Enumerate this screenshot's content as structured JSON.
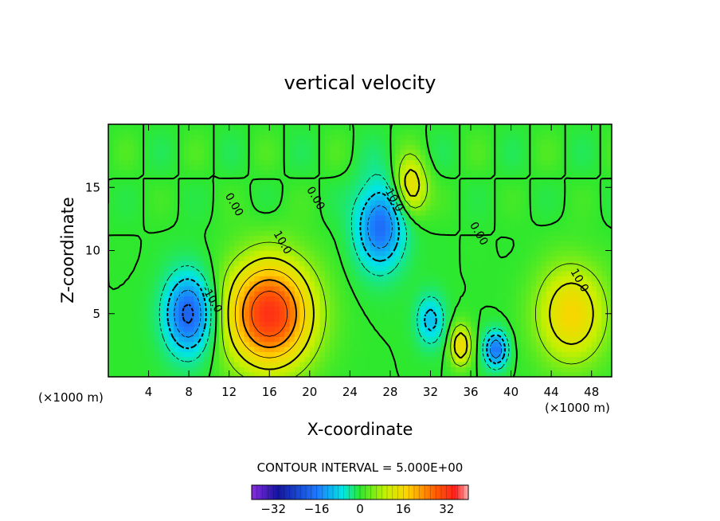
{
  "chart_data": {
    "type": "contour",
    "title": "vertical velocity",
    "xlabel": "X-coordinate",
    "ylabel": "Z-coordinate",
    "xunit": "(×1000 m)",
    "zunit": "(×1000 m)",
    "xlim": [
      0,
      50
    ],
    "ylim": [
      0,
      20
    ],
    "xticks": [
      4,
      8,
      12,
      16,
      20,
      24,
      28,
      32,
      36,
      40,
      44,
      48
    ],
    "xtick_labels": [
      "4",
      "8",
      "12",
      "16",
      "20",
      "24",
      "28",
      "32",
      "36",
      "40",
      "44",
      "48"
    ],
    "yticks": [
      5,
      10,
      15
    ],
    "ytick_labels": [
      "5",
      "10",
      "15"
    ],
    "contour_interval_label": "CONTOUR INTERVAL = 5.000E+00",
    "colorbar": {
      "ticks": [
        -32,
        -16,
        0,
        16,
        32
      ],
      "tick_labels": [
        "−32",
        "−16",
        "0",
        "16",
        "32"
      ],
      "range": [
        -40,
        40
      ]
    },
    "contour_labels": [
      {
        "text": "10.0",
        "x": 17,
        "z": 10.5
      },
      {
        "text": "10.0",
        "x": 46.5,
        "z": 7.5
      },
      {
        "text": "-10.0",
        "x": 10,
        "z": 6
      },
      {
        "text": "-10.0",
        "x": 28,
        "z": 14
      },
      {
        "text": "0.00",
        "x": 12.2,
        "z": 13.5
      },
      {
        "text": "0.00",
        "x": 20.3,
        "z": 14
      },
      {
        "text": "0.00",
        "x": 36.5,
        "z": 11.2
      }
    ],
    "features": [
      {
        "kind": "updraft",
        "x": 16,
        "z": 5,
        "peak": 30
      },
      {
        "kind": "updraft",
        "x": 46,
        "z": 5,
        "peak": 15
      },
      {
        "kind": "updraft",
        "x": 30,
        "z": 15,
        "peak": 15
      },
      {
        "kind": "updraft",
        "x": 35,
        "z": 2.5,
        "peak": 15
      },
      {
        "kind": "downdraft",
        "x": 8,
        "z": 5,
        "peak": -22
      },
      {
        "kind": "downdraft",
        "x": 27,
        "z": 12,
        "peak": -20
      },
      {
        "kind": "downdraft",
        "x": 38.5,
        "z": 2.2,
        "peak": -20
      },
      {
        "kind": "downdraft",
        "x": 32,
        "z": 4.5,
        "peak": -12
      }
    ]
  }
}
